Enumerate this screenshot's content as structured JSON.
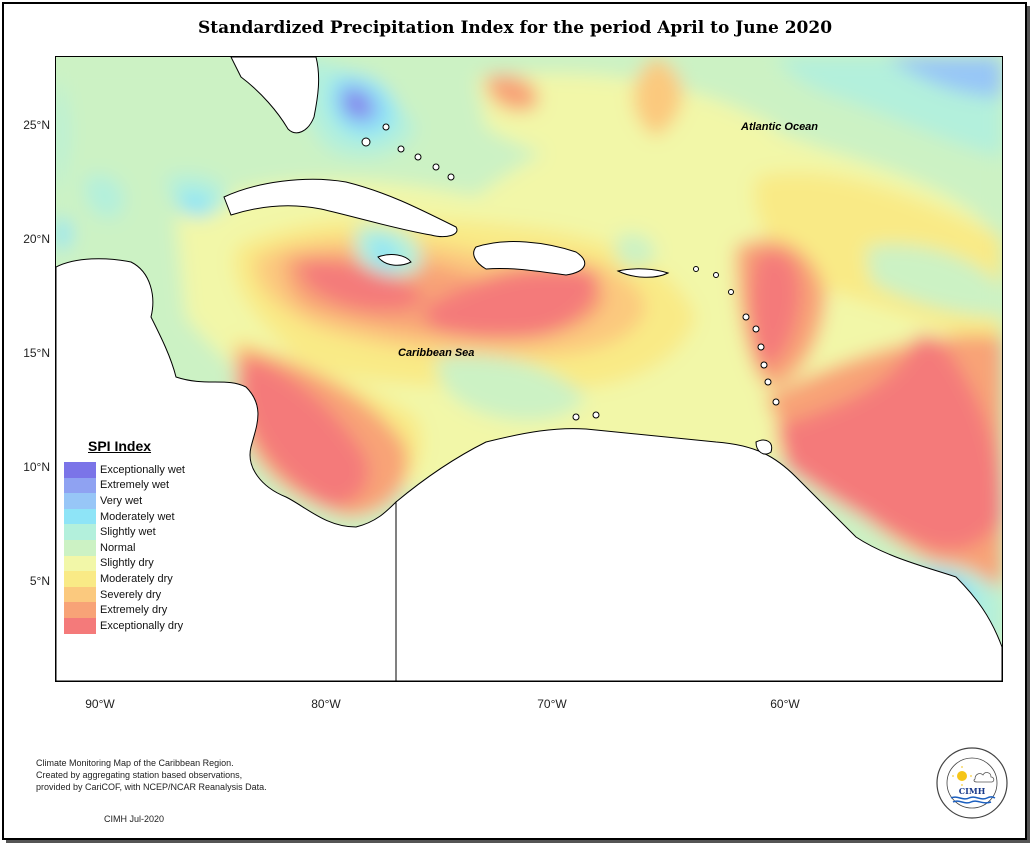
{
  "title": "Standardized Precipitation Index for the period April to June 2020",
  "axes": {
    "latitude_labels": [
      "25°N",
      "20°N",
      "15°N",
      "10°N",
      "5°N"
    ],
    "longitude_labels": [
      "90°W",
      "80°W",
      "70°W",
      "60°W"
    ]
  },
  "map_labels": {
    "atlantic": "Atlantic Ocean",
    "caribbean": "Caribbean Sea"
  },
  "legend": {
    "title": "SPI Index",
    "items": [
      {
        "label": "Exceptionally wet",
        "color": "#7b74e8"
      },
      {
        "label": "Extremely wet",
        "color": "#8fa2f2"
      },
      {
        "label": "Very wet",
        "color": "#97c6f7"
      },
      {
        "label": "Moderately wet",
        "color": "#8ee4f7"
      },
      {
        "label": "Slightly wet",
        "color": "#b3f0dc"
      },
      {
        "label": "Normal",
        "color": "#ccf2c4"
      },
      {
        "label": "Slightly dry",
        "color": "#f2f7a8"
      },
      {
        "label": "Moderately dry",
        "color": "#f9ea86"
      },
      {
        "label": "Severely dry",
        "color": "#fbc97e"
      },
      {
        "label": "Extremely dry",
        "color": "#f8a377"
      },
      {
        "label": "Exceptionally dry",
        "color": "#f47a7a"
      }
    ]
  },
  "footnote": {
    "line1": "Climate Monitoring Map of the Caribbean Region.",
    "line2": "Created by aggregating station based observations,",
    "line3": "provided by CariCOF, with NCEP/NCAR Reanalysis Data.",
    "credit": "CIMH Jul-2020"
  },
  "logo": {
    "text": "CIMH",
    "ring_text": "Caribbean Institute for Meteorology and Hydrology"
  }
}
